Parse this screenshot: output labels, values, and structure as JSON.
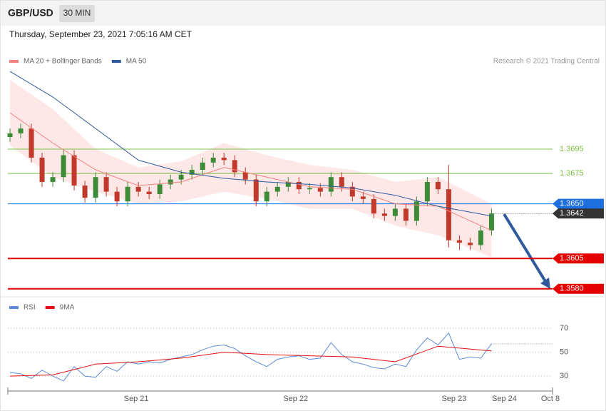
{
  "header": {
    "symbol": "GBP/USD",
    "timeframe": "30 MIN",
    "timestamp": "Thursday, September 23, 2021 7:05:16 AM CET"
  },
  "chart_data": [
    {
      "type": "candlestick",
      "source": "Research © 2021 Trading Central",
      "xlim": [
        -0.2,
        50.7
      ],
      "ylim": [
        1.3574,
        1.3762
      ],
      "up_color": "#3d8b37",
      "down_color": "#c0392b",
      "open": [
        1.3705,
        1.3708,
        1.3712,
        1.3688,
        1.3668,
        1.3672,
        1.369,
        1.3665,
        1.3655,
        1.3672,
        1.366,
        1.3652,
        1.3664,
        1.366,
        1.3658,
        1.3666,
        1.367,
        1.3674,
        1.3678,
        1.3684,
        1.3688,
        1.3686,
        1.3676,
        1.367,
        1.3652,
        1.366,
        1.3664,
        1.3668,
        1.3662,
        1.3663,
        1.366,
        1.3672,
        1.3664,
        1.3656,
        1.3654,
        1.3642,
        1.364,
        1.3646,
        1.3636,
        1.3652,
        1.3668,
        1.3662,
        1.362,
        1.3618,
        1.3616,
        1.3628
      ],
      "high": [
        1.3712,
        1.3716,
        1.3716,
        1.3692,
        1.3676,
        1.3694,
        1.3694,
        1.3669,
        1.3676,
        1.3676,
        1.3664,
        1.3668,
        1.3668,
        1.3664,
        1.367,
        1.3674,
        1.3678,
        1.3682,
        1.3688,
        1.3692,
        1.3692,
        1.369,
        1.368,
        1.3674,
        1.3664,
        1.3668,
        1.3672,
        1.3672,
        1.3667,
        1.3667,
        1.3676,
        1.3676,
        1.3668,
        1.366,
        1.3658,
        1.3646,
        1.365,
        1.365,
        1.3656,
        1.3672,
        1.3672,
        1.3682,
        1.3624,
        1.3622,
        1.3632,
        1.3646
      ],
      "low": [
        1.3701,
        1.3704,
        1.3684,
        1.3664,
        1.3664,
        1.3668,
        1.3661,
        1.3651,
        1.3651,
        1.3656,
        1.3648,
        1.3648,
        1.3656,
        1.3654,
        1.3654,
        1.3662,
        1.3666,
        1.367,
        1.3674,
        1.368,
        1.3682,
        1.3672,
        1.3666,
        1.3648,
        1.3648,
        1.3656,
        1.366,
        1.3658,
        1.3658,
        1.3656,
        1.3656,
        1.366,
        1.3652,
        1.365,
        1.3638,
        1.3636,
        1.3636,
        1.3632,
        1.3632,
        1.3648,
        1.3658,
        1.3614,
        1.3612,
        1.3612,
        1.3612,
        1.3624
      ],
      "close": [
        1.3708,
        1.3712,
        1.3688,
        1.3668,
        1.3672,
        1.369,
        1.3665,
        1.3655,
        1.3672,
        1.366,
        1.3652,
        1.3664,
        1.366,
        1.3658,
        1.3666,
        1.367,
        1.3674,
        1.3678,
        1.3684,
        1.3688,
        1.3686,
        1.3676,
        1.367,
        1.3652,
        1.366,
        1.3664,
        1.3668,
        1.3662,
        1.3663,
        1.366,
        1.3672,
        1.3664,
        1.3656,
        1.3654,
        1.3642,
        1.364,
        1.3646,
        1.3636,
        1.3652,
        1.3668,
        1.3662,
        1.362,
        1.3618,
        1.3616,
        1.3628,
        1.3642
      ],
      "bands": {
        "color": "#fde3e3",
        "x": [
          0,
          4,
          8,
          12,
          16,
          20,
          24,
          28,
          32,
          36,
          40,
          45
        ],
        "upper": [
          1.3752,
          1.3728,
          1.3695,
          1.368,
          1.3685,
          1.37,
          1.369,
          1.3682,
          1.3678,
          1.3668,
          1.3672,
          1.365
        ],
        "lower": [
          1.3698,
          1.3672,
          1.366,
          1.365,
          1.3652,
          1.366,
          1.3654,
          1.3646,
          1.3646,
          1.3632,
          1.3624,
          1.3606
        ]
      },
      "series": [
        {
          "name": "MA 20 + Bollinger Bands",
          "color": "#f4817f",
          "x": [
            0,
            4,
            8,
            12,
            16,
            20,
            24,
            28,
            32,
            36,
            40,
            45
          ],
          "values": [
            1.3725,
            1.37,
            1.3678,
            1.3665,
            1.3668,
            1.368,
            1.3672,
            1.3664,
            1.3662,
            1.365,
            1.3648,
            1.3628
          ]
        },
        {
          "name": "MA 50",
          "color": "#2f5a9e",
          "x": [
            0,
            4,
            8,
            12,
            16,
            20,
            24,
            28,
            32,
            36,
            40,
            45
          ],
          "values": [
            1.3759,
            1.3738,
            1.3712,
            1.3686,
            1.3676,
            1.3671,
            1.3668,
            1.3666,
            1.3663,
            1.3657,
            1.3648,
            1.364
          ]
        }
      ],
      "levels": [
        {
          "value": 1.3695,
          "color": "#7cc043"
        },
        {
          "value": 1.3675,
          "color": "#7cc043"
        },
        {
          "value": 1.365,
          "label": "1.3650",
          "color": "#1e6fe0",
          "boxed": true
        },
        {
          "value": 1.3605,
          "color": "#e40000",
          "boxed": true
        },
        {
          "value": 1.358,
          "label": "1.3580",
          "color": "#e40000",
          "boxed": true
        }
      ],
      "last": 1.3642,
      "last_color": "#333333"
    },
    {
      "type": "line",
      "xlim": [
        -0.2,
        50.7
      ],
      "ylim": [
        17.5,
        79
      ],
      "yticks": [
        30,
        50,
        70
      ],
      "xticks": [
        {
          "value": 11.8,
          "label": "Sep 21"
        },
        {
          "value": 26.7,
          "label": "Sep 22"
        },
        {
          "value": 41.5,
          "label": "Sep 23"
        },
        {
          "value": 46.2,
          "label": "Sep 24"
        },
        {
          "value": 50.5,
          "label": "Oct 8"
        }
      ],
      "series": [
        {
          "name": "RSI",
          "color": "#5b8bd9",
          "values": [
            33,
            32,
            28,
            35,
            30,
            26,
            38,
            30,
            29,
            38,
            34,
            42,
            40,
            42,
            41,
            44,
            46,
            48,
            52,
            55,
            56,
            53,
            47,
            42,
            38,
            44,
            46,
            47,
            44,
            45,
            58,
            48,
            42,
            40,
            37,
            36,
            40,
            38,
            52,
            62,
            56,
            66,
            44,
            46,
            45,
            57
          ]
        },
        {
          "name": "9MA",
          "color": "#e01010",
          "x": [
            0,
            4,
            8,
            12,
            16,
            20,
            24,
            28,
            32,
            36,
            40,
            45
          ],
          "values": [
            30,
            31,
            40,
            42,
            45,
            50,
            48,
            47,
            46,
            42,
            55,
            51
          ]
        }
      ]
    }
  ]
}
